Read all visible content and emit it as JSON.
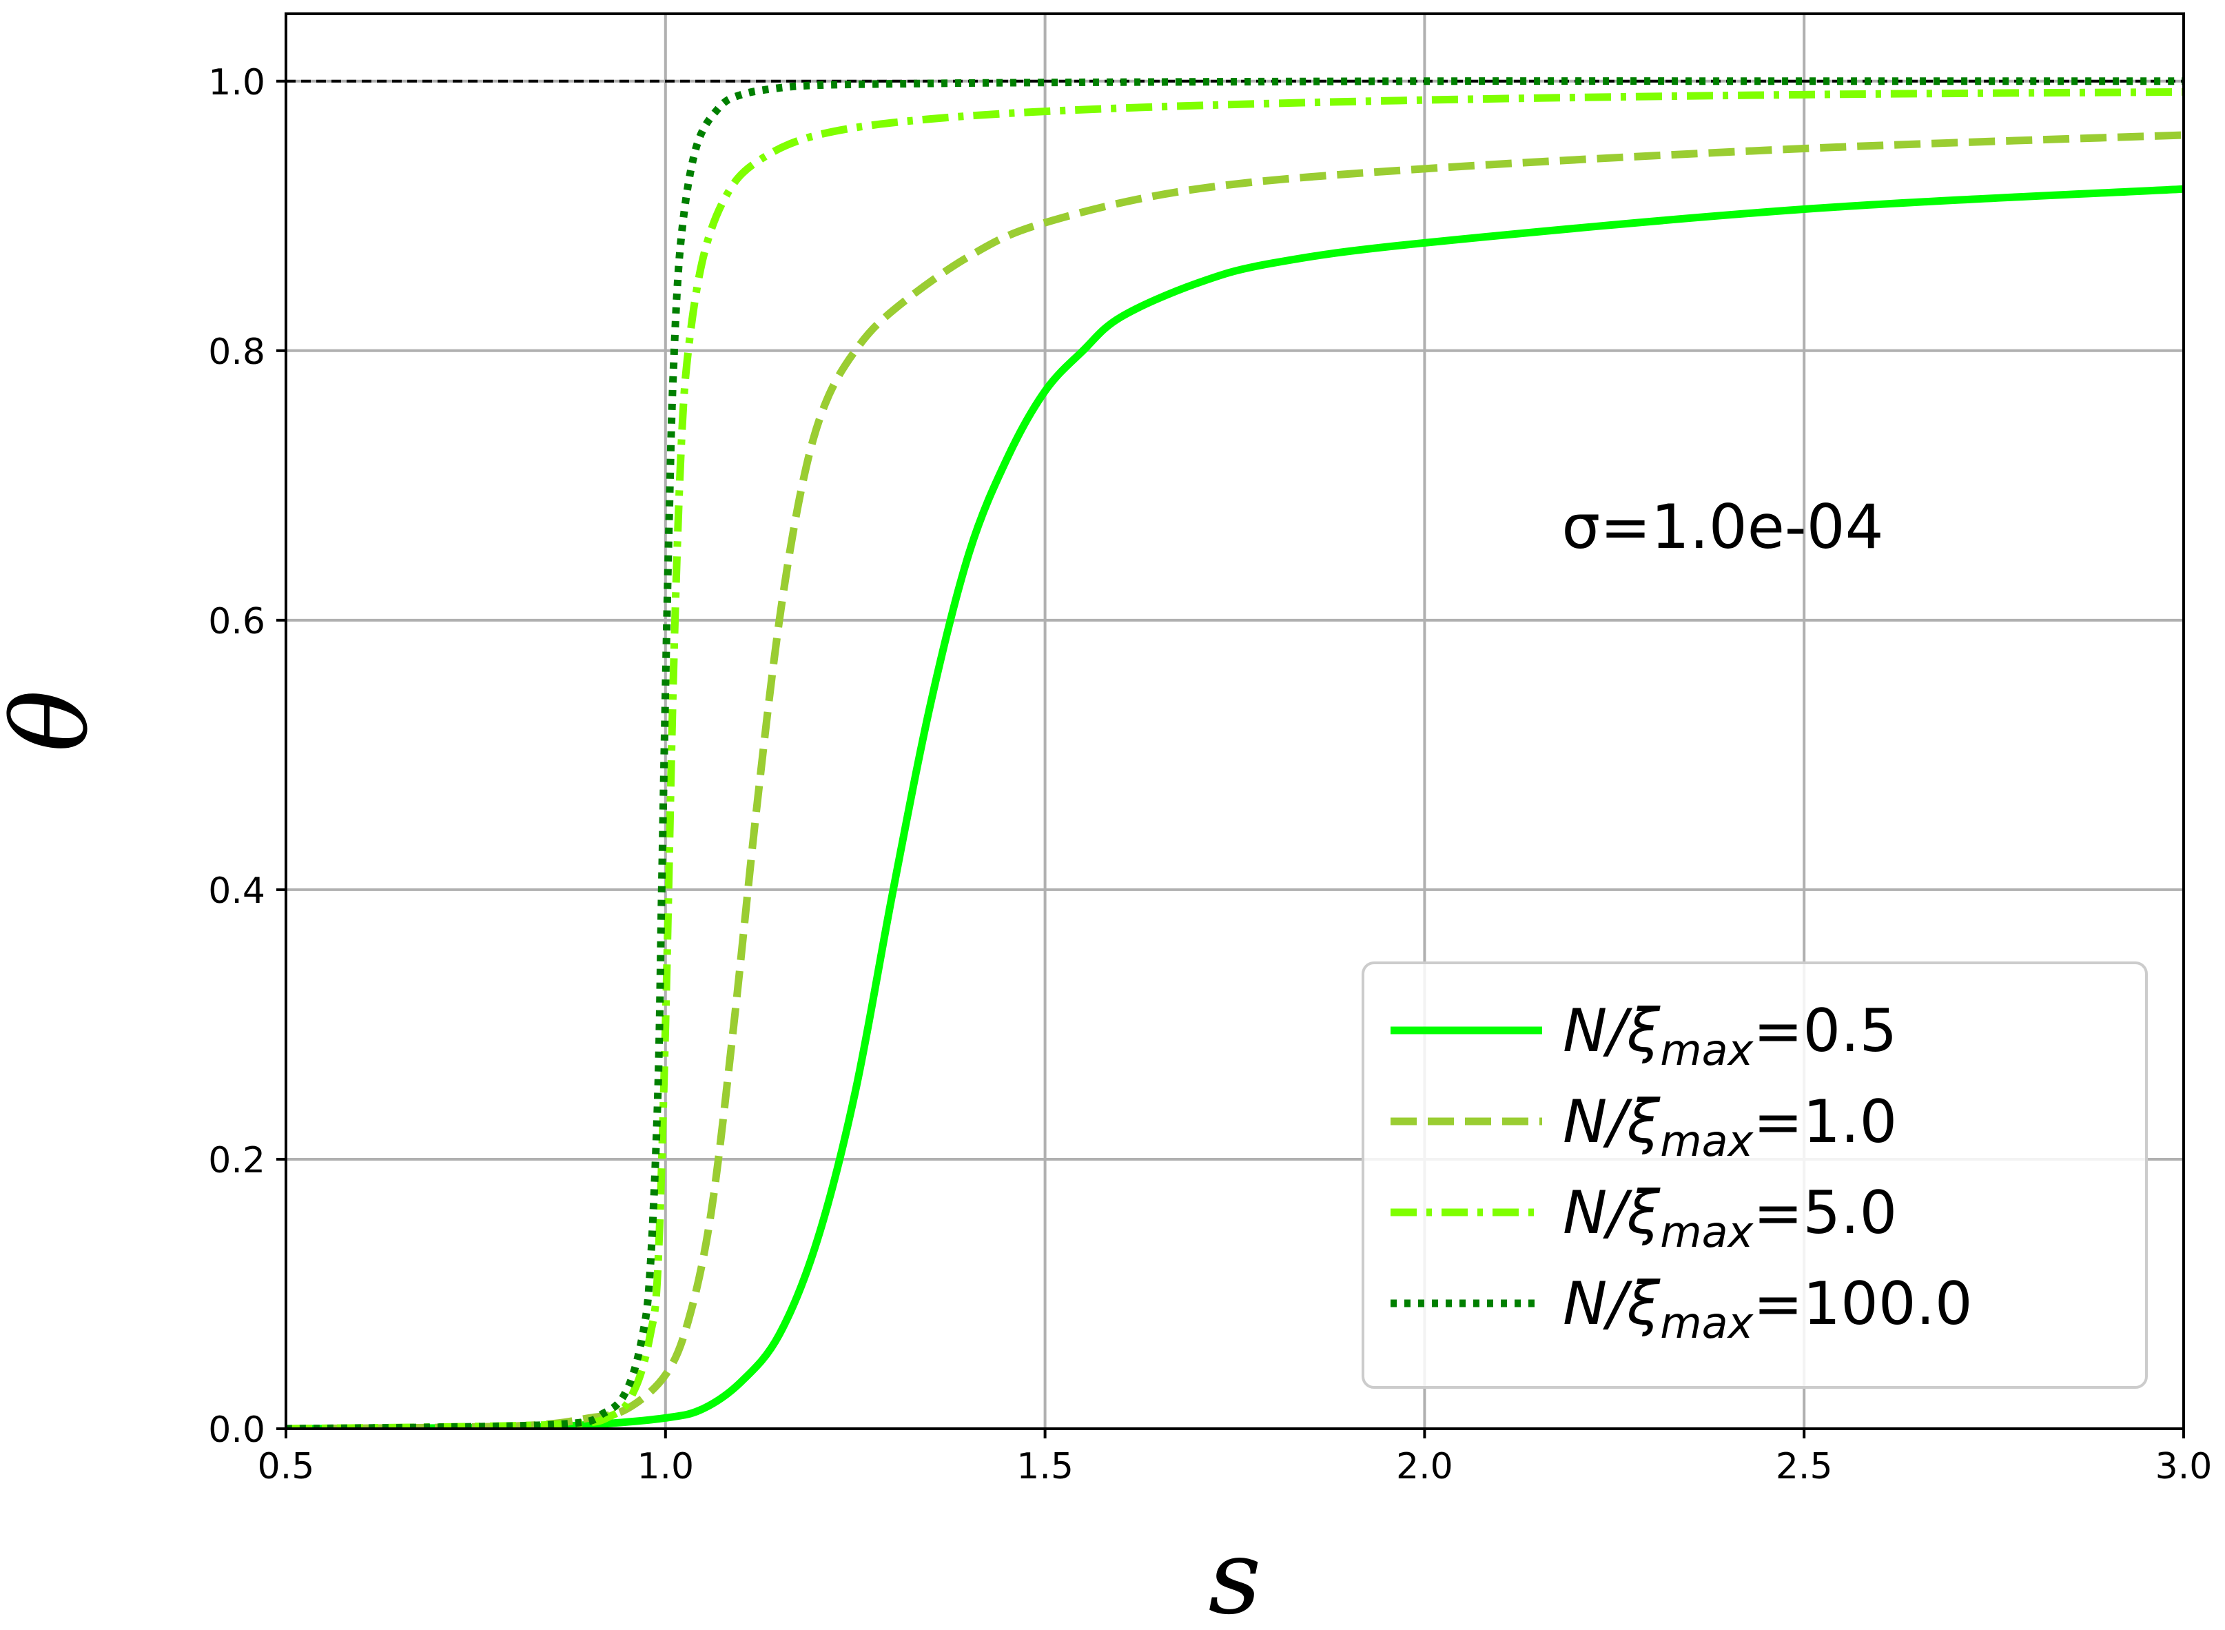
{
  "chart_data": {
    "type": "line",
    "xlabel": "s",
    "ylabel": "θ",
    "xlim": [
      0.5,
      3.0
    ],
    "ylim": [
      0.0,
      1.05
    ],
    "xticks": [
      0.5,
      1.0,
      1.5,
      2.0,
      2.5,
      3.0
    ],
    "xtick_labels": [
      "0.5",
      "1.0",
      "1.5",
      "2.0",
      "2.5",
      "3.0"
    ],
    "yticks": [
      0.0,
      0.2,
      0.4,
      0.6,
      0.8,
      1.0
    ],
    "ytick_labels": [
      "0.0",
      "0.2",
      "0.4",
      "0.6",
      "0.8",
      "1.0"
    ],
    "grid": true,
    "legend_position": "bottom-right",
    "annotation": "σ=1.0e-04",
    "reference_line": {
      "y": 1.0,
      "style": "dashed",
      "color": "#000000"
    },
    "series": [
      {
        "name": "N/ξmax=0.5",
        "legend_base": "N/ξ",
        "legend_sub": "max",
        "legend_value": "=0.5",
        "color": "#00ff00",
        "style": "solid",
        "x": [
          0.5,
          0.8,
          0.9,
          1.0,
          1.05,
          1.1,
          1.15,
          1.2,
          1.25,
          1.3,
          1.35,
          1.4,
          1.45,
          1.5,
          1.55,
          1.6,
          1.7,
          1.8,
          2.0,
          2.5,
          3.0
        ],
        "y": [
          0.0,
          0.001,
          0.003,
          0.008,
          0.015,
          0.035,
          0.07,
          0.14,
          0.25,
          0.4,
          0.54,
          0.65,
          0.72,
          0.77,
          0.8,
          0.825,
          0.85,
          0.865,
          0.88,
          0.905,
          0.92
        ]
      },
      {
        "name": "N/ξmax=1.0",
        "legend_base": "N/ξ",
        "legend_sub": "max",
        "legend_value": "=1.0",
        "color": "#9acd32",
        "style": "dashed",
        "x": [
          0.5,
          0.8,
          0.9,
          0.95,
          1.0,
          1.03,
          1.06,
          1.09,
          1.12,
          1.15,
          1.18,
          1.21,
          1.25,
          1.3,
          1.4,
          1.5,
          1.7,
          2.0,
          2.5,
          3.0
        ],
        "y": [
          0.0,
          0.002,
          0.008,
          0.015,
          0.04,
          0.08,
          0.16,
          0.3,
          0.46,
          0.6,
          0.7,
          0.76,
          0.8,
          0.83,
          0.87,
          0.895,
          0.92,
          0.935,
          0.95,
          0.96
        ]
      },
      {
        "name": "N/ξmax=5.0",
        "legend_base": "N/ξ",
        "legend_sub": "max",
        "legend_value": "=5.0",
        "color": "#7fff00",
        "style": "dashdot",
        "x": [
          0.5,
          0.85,
          0.93,
          0.96,
          0.98,
          0.99,
          1.0,
          1.01,
          1.02,
          1.03,
          1.05,
          1.08,
          1.12,
          1.2,
          1.35,
          1.6,
          2.0,
          2.5,
          3.0
        ],
        "y": [
          0.0,
          0.003,
          0.01,
          0.03,
          0.07,
          0.12,
          0.3,
          0.55,
          0.72,
          0.8,
          0.87,
          0.915,
          0.94,
          0.96,
          0.972,
          0.98,
          0.986,
          0.99,
          0.992
        ]
      },
      {
        "name": "N/ξmax=100.0",
        "legend_base": "N/ξ",
        "legend_sub": "max",
        "legend_value": "=100.0",
        "color": "#007f00",
        "style": "dotted",
        "x": [
          0.5,
          0.85,
          0.92,
          0.95,
          0.97,
          0.98,
          0.99,
          0.995,
          1.0,
          1.005,
          1.01,
          1.02,
          1.04,
          1.07,
          1.1,
          1.15,
          1.2,
          1.3,
          1.5,
          2.0,
          2.5,
          3.0
        ],
        "y": [
          0.0,
          0.003,
          0.012,
          0.03,
          0.07,
          0.12,
          0.25,
          0.4,
          0.55,
          0.68,
          0.78,
          0.88,
          0.95,
          0.98,
          0.99,
          0.995,
          0.997,
          0.998,
          0.999,
          1.0,
          1.0,
          1.0
        ]
      }
    ]
  }
}
